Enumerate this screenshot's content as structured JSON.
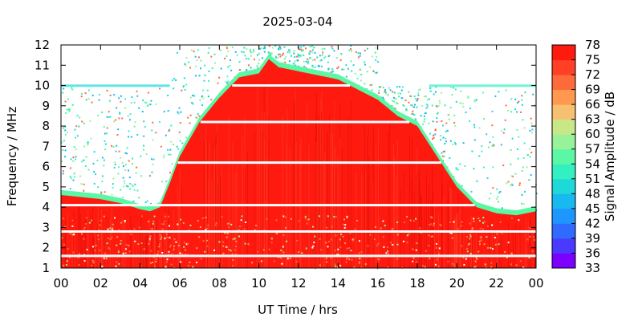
{
  "chart_data": {
    "type": "heatmap",
    "title": "2025-03-04",
    "xlabel": "UT Time / hrs",
    "ylabel": "Frequency / MHz",
    "colorbar_label": "Signal Amplitude / dB",
    "xlim": [
      0,
      24
    ],
    "ylim": [
      1,
      12
    ],
    "x_ticks": [
      "00",
      "02",
      "04",
      "06",
      "08",
      "10",
      "12",
      "14",
      "16",
      "18",
      "20",
      "22",
      "00"
    ],
    "y_ticks": [
      "1",
      "2",
      "3",
      "4",
      "5",
      "6",
      "7",
      "8",
      "9",
      "10",
      "11",
      "12"
    ],
    "colorbar_range": [
      33,
      78
    ],
    "colorbar_ticks": [
      "78",
      "75",
      "72",
      "69",
      "66",
      "63",
      "60",
      "57",
      "54",
      "51",
      "48",
      "45",
      "42",
      "39",
      "36",
      "33"
    ],
    "colorbar_colors": [
      "#7b00ff",
      "#4a3aff",
      "#2f6bff",
      "#1f95ff",
      "#18b8f0",
      "#1fd8d8",
      "#33f0c0",
      "#5cf7a5",
      "#98f29a",
      "#c8e888",
      "#f7c070",
      "#ff9950",
      "#ff6a3a",
      "#ff4025",
      "#ff1a10"
    ],
    "max_usable_frequency_envelope": {
      "description_points_hours": [
        0,
        1,
        2,
        3,
        4,
        4.5,
        5,
        5.5,
        6,
        7,
        8,
        9,
        10,
        10.5,
        11,
        12,
        13,
        14,
        15,
        16,
        17,
        18,
        19,
        20,
        21,
        22,
        23,
        24
      ],
      "description_points_mhz": [
        4.6,
        4.5,
        4.4,
        4.2,
        3.9,
        3.8,
        4.0,
        5.2,
        6.5,
        8.2,
        9.4,
        10.4,
        10.6,
        11.3,
        10.9,
        10.7,
        10.5,
        10.3,
        9.8,
        9.3,
        8.5,
        8.0,
        6.5,
        5.0,
        4.0,
        3.7,
        3.6,
        3.8
      ]
    },
    "gap_lines_mhz": [
      4.1,
      6.2,
      8.2,
      10.0,
      2.8,
      1.6
    ],
    "grid": false
  }
}
